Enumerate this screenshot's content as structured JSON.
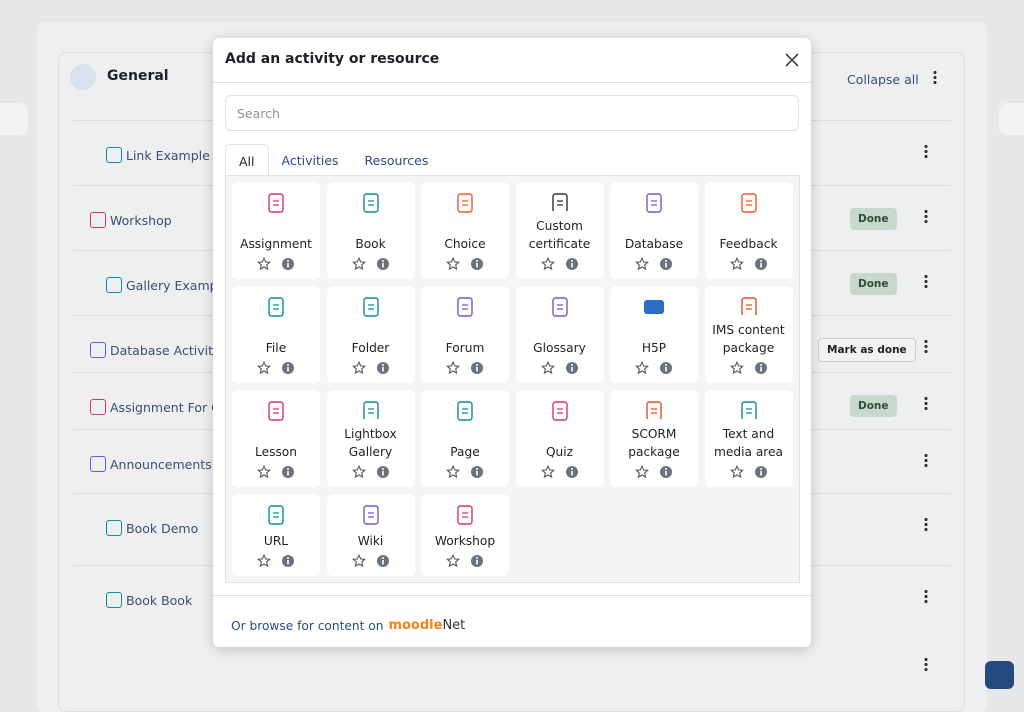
{
  "background": {
    "section_title": "General",
    "collapse_all": "Collapse all",
    "rows": [
      {
        "label": "Link Example"
      },
      {
        "label": "Workshop",
        "status": "Done"
      },
      {
        "label": "Gallery Examp",
        "status": "Done"
      },
      {
        "label": "Database Activity",
        "status": "Mark as done"
      },
      {
        "label": "Assignment For G",
        "status": "Done"
      },
      {
        "label": "Announcements"
      },
      {
        "label": "Book Demo"
      },
      {
        "label": "Book Book"
      }
    ]
  },
  "modal": {
    "title": "Add an activity or resource",
    "search_placeholder": "Search",
    "tabs": [
      "All",
      "Activities",
      "Resources"
    ],
    "items": [
      {
        "label": "Assignment",
        "color": "#d6336c"
      },
      {
        "label": "Book",
        "color": "#0d8ca0"
      },
      {
        "label": "Choice",
        "color": "#f0582a"
      },
      {
        "label": "Custom certificate",
        "color": "#333333"
      },
      {
        "label": "Database",
        "color": "#6a5acd"
      },
      {
        "label": "Feedback",
        "color": "#f0582a"
      },
      {
        "label": "File",
        "color": "#0d8ca0"
      },
      {
        "label": "Folder",
        "color": "#0d8ca0"
      },
      {
        "label": "Forum",
        "color": "#6a5acd"
      },
      {
        "label": "Glossary",
        "color": "#6a5acd"
      },
      {
        "label": "H5P",
        "color": "#2b6cc4"
      },
      {
        "label": "IMS content package",
        "color": "#e0502a"
      },
      {
        "label": "Lesson",
        "color": "#d6336c"
      },
      {
        "label": "Lightbox Gallery",
        "color": "#0d8ca0"
      },
      {
        "label": "Page",
        "color": "#0d8ca0"
      },
      {
        "label": "Quiz",
        "color": "#d6336c"
      },
      {
        "label": "SCORM package",
        "color": "#e0502a"
      },
      {
        "label": "Text and media area",
        "color": "#0d8ca0"
      },
      {
        "label": "URL",
        "color": "#0d8ca0"
      },
      {
        "label": "Wiki",
        "color": "#6a5acd"
      },
      {
        "label": "Workshop",
        "color": "#d6336c"
      }
    ],
    "footer_text": "Or browse for content on",
    "footer_logo": [
      "moodle",
      "Net"
    ]
  }
}
